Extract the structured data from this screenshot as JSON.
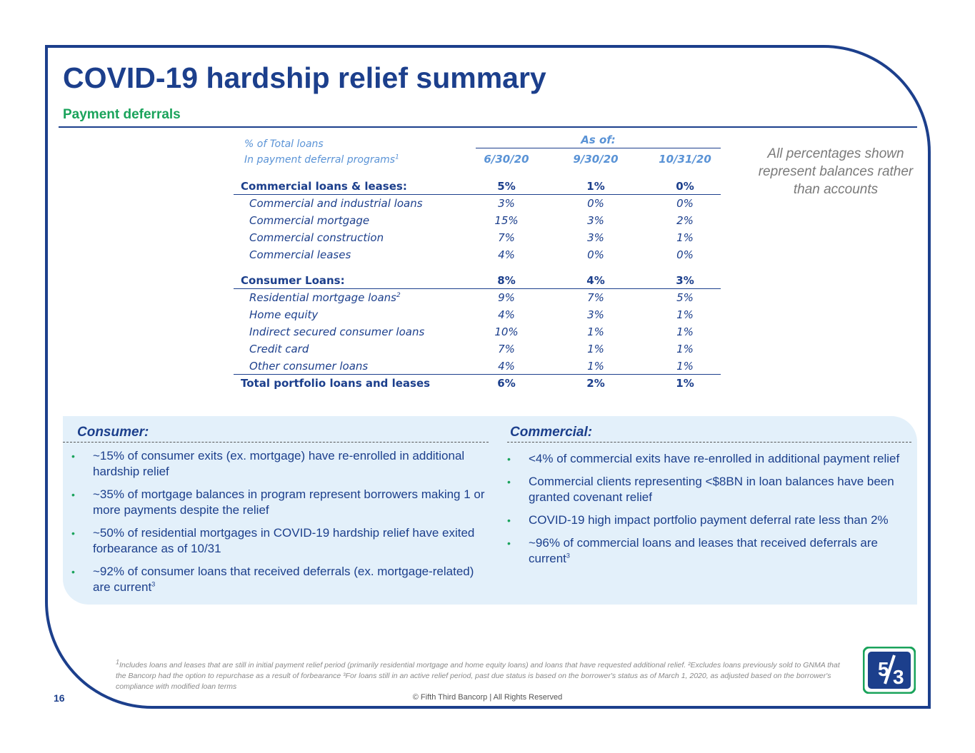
{
  "title": "COVID-19 hardship relief summary",
  "subtitle": "Payment deferrals",
  "table": {
    "header_line1": "% of Total loans",
    "header_line2": "In payment deferral programs",
    "header_line2_sup": "1",
    "as_of": "As of:",
    "columns": [
      "6/30/20",
      "9/30/20",
      "10/31/20"
    ],
    "rows": [
      {
        "label": "Commercial loans & leases:",
        "values": [
          "5%",
          "1%",
          "0%"
        ]
      },
      {
        "label": "Commercial and industrial loans",
        "values": [
          "3%",
          "0%",
          "0%"
        ]
      },
      {
        "label": "Commercial mortgage",
        "values": [
          "15%",
          "3%",
          "2%"
        ]
      },
      {
        "label": "Commercial construction",
        "values": [
          "7%",
          "3%",
          "1%"
        ]
      },
      {
        "label": "Commercial leases",
        "values": [
          "4%",
          "0%",
          "0%"
        ]
      },
      {
        "label": "Consumer Loans:",
        "values": [
          "8%",
          "4%",
          "3%"
        ]
      },
      {
        "label": "Residential mortgage loans",
        "sup": "2",
        "values": [
          "9%",
          "7%",
          "5%"
        ]
      },
      {
        "label": "Home equity",
        "values": [
          "4%",
          "3%",
          "1%"
        ]
      },
      {
        "label": "Indirect secured consumer loans",
        "values": [
          "10%",
          "1%",
          "1%"
        ]
      },
      {
        "label": "Credit card",
        "values": [
          "7%",
          "1%",
          "1%"
        ]
      },
      {
        "label": "Other consumer loans",
        "values": [
          "4%",
          "1%",
          "1%"
        ]
      },
      {
        "label": "Total portfolio loans and leases",
        "values": [
          "6%",
          "2%",
          "1%"
        ]
      }
    ]
  },
  "side_note": "All percentages shown represent balances rather than accounts",
  "consumer": {
    "title": "Consumer:",
    "bullets": [
      {
        "text": "~15% of consumer exits (ex. mortgage) have re-enrolled in additional hardship relief"
      },
      {
        "text": "~35% of mortgage balances in program represent borrowers making 1 or more payments despite the relief"
      },
      {
        "text": "~50% of residential mortgages in COVID-19 hardship relief have exited forbearance as of 10/31"
      },
      {
        "text": "~92% of consumer loans that received deferrals (ex. mortgage-related) are current",
        "sup": "3"
      }
    ]
  },
  "commercial": {
    "title": "Commercial:",
    "bullets": [
      {
        "text": "<4% of commercial exits have re-enrolled in additional payment relief"
      },
      {
        "text": "Commercial clients representing <$8BN in loan balances have been granted covenant relief"
      },
      {
        "text": "COVID-19 high impact portfolio payment deferral rate less than 2%"
      },
      {
        "text": "~96% of commercial loans and leases that received deferrals are current",
        "sup": "3"
      }
    ]
  },
  "footnote": "Includes loans and leases that are still in initial payment relief period (primarily residential mortgage and home equity loans) and loans that have requested additional relief. ²Excludes loans previously sold to GNMA that the Bancorp had the option to repurchase as a result of forbearance ³For loans still in an active relief period, past due status is based on the borrower's status as of March 1, 2020, as adjusted based on the borrower's compliance with modified loan terms",
  "footnote_sup": "1",
  "page_number": "16",
  "copyright": "© Fifth Third Bancorp | All Rights Reserved",
  "colors": {
    "navy": "#1c3f8c",
    "green": "#1aa35b",
    "light_blue": "#5a93d6",
    "panel": "#e3f0fa"
  }
}
